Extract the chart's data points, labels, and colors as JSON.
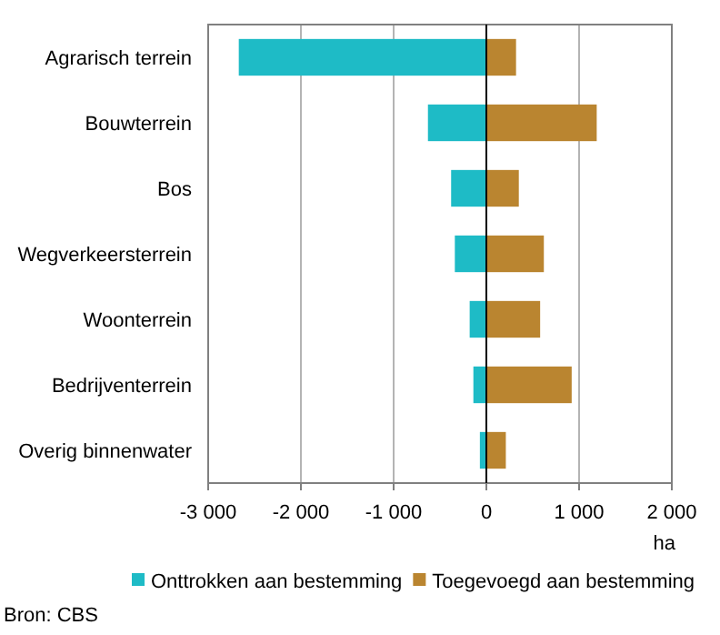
{
  "chart_data": {
    "type": "bar",
    "orientation": "horizontal",
    "stacked": true,
    "categories": [
      "Agrarisch terrein",
      "Bouwterrein",
      "Bos",
      "Wegverkeersterrein",
      "Woonterrein",
      "Bedrijventerrein",
      "Overig binnenwater"
    ],
    "series": [
      {
        "name": "Onttrokken aan bestemming",
        "color": "#1ebbc6",
        "values": [
          -2670,
          -630,
          -380,
          -340,
          -180,
          -140,
          -70
        ]
      },
      {
        "name": "Toegevoegd aan bestemming",
        "color": "#ba8530",
        "values": [
          320,
          1190,
          350,
          620,
          580,
          920,
          210
        ]
      }
    ],
    "xlabel": "ha",
    "xlim": [
      -3000,
      2000
    ],
    "xticks": [
      {
        "value": -3000,
        "label": "-3 000"
      },
      {
        "value": -2000,
        "label": "-2 000"
      },
      {
        "value": -1000,
        "label": "-1 000"
      },
      0,
      {
        "value": 1000,
        "label": "1 000"
      },
      {
        "value": 2000,
        "label": "2 000"
      }
    ],
    "grid": "x",
    "legend": "bottom",
    "annotations": [
      "Bron: CBS"
    ]
  }
}
